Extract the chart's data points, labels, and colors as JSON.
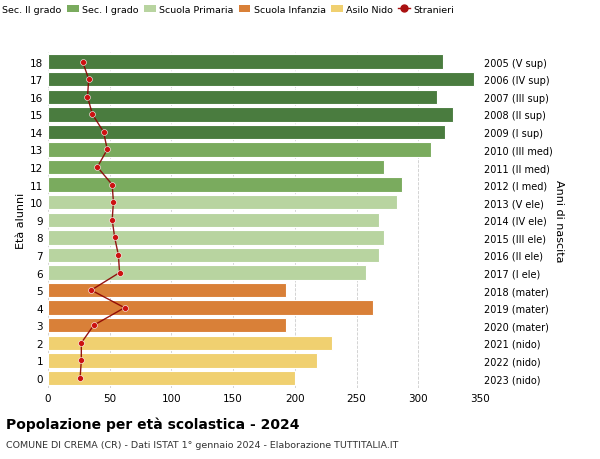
{
  "ages": [
    18,
    17,
    16,
    15,
    14,
    13,
    12,
    11,
    10,
    9,
    8,
    7,
    6,
    5,
    4,
    3,
    2,
    1,
    0
  ],
  "right_labels": [
    "2005 (V sup)",
    "2006 (IV sup)",
    "2007 (III sup)",
    "2008 (II sup)",
    "2009 (I sup)",
    "2010 (III med)",
    "2011 (II med)",
    "2012 (I med)",
    "2013 (V ele)",
    "2014 (IV ele)",
    "2015 (III ele)",
    "2016 (II ele)",
    "2017 (I ele)",
    "2018 (mater)",
    "2019 (mater)",
    "2020 (mater)",
    "2021 (nido)",
    "2022 (nido)",
    "2023 (nido)"
  ],
  "bar_values": [
    320,
    345,
    315,
    328,
    322,
    310,
    272,
    287,
    283,
    268,
    272,
    268,
    258,
    193,
    263,
    193,
    230,
    218,
    200
  ],
  "bar_colors": [
    "#4a7c3f",
    "#4a7c3f",
    "#4a7c3f",
    "#4a7c3f",
    "#4a7c3f",
    "#7aab5e",
    "#7aab5e",
    "#7aab5e",
    "#b8d4a0",
    "#b8d4a0",
    "#b8d4a0",
    "#b8d4a0",
    "#b8d4a0",
    "#d98038",
    "#d98038",
    "#d98038",
    "#f0d070",
    "#f0d070",
    "#f0d070"
  ],
  "stranieri_values": [
    28,
    33,
    32,
    36,
    45,
    48,
    40,
    52,
    53,
    52,
    54,
    57,
    58,
    35,
    62,
    37,
    27,
    27,
    26
  ],
  "legend_entries": [
    {
      "label": "Sec. II grado",
      "color": "#4a7c3f"
    },
    {
      "label": "Sec. I grado",
      "color": "#7aab5e"
    },
    {
      "label": "Scuola Primaria",
      "color": "#b8d4a0"
    },
    {
      "label": "Scuola Infanzia",
      "color": "#d98038"
    },
    {
      "label": "Asilo Nido",
      "color": "#f0d070"
    },
    {
      "label": "Stranieri",
      "color": "#aa1111"
    }
  ],
  "ylabel_left": "Età alunni",
  "ylabel_right": "Anni di nascita",
  "xlim": [
    0,
    350
  ],
  "xticks": [
    0,
    50,
    100,
    150,
    200,
    250,
    300,
    350
  ],
  "title": "Popolazione per età scolastica - 2024",
  "subtitle": "COMUNE DI CREMA (CR) - Dati ISTAT 1° gennaio 2024 - Elaborazione TUTTITALIA.IT",
  "background_color": "#ffffff",
  "bar_height": 0.82,
  "grid_color": "#cccccc"
}
